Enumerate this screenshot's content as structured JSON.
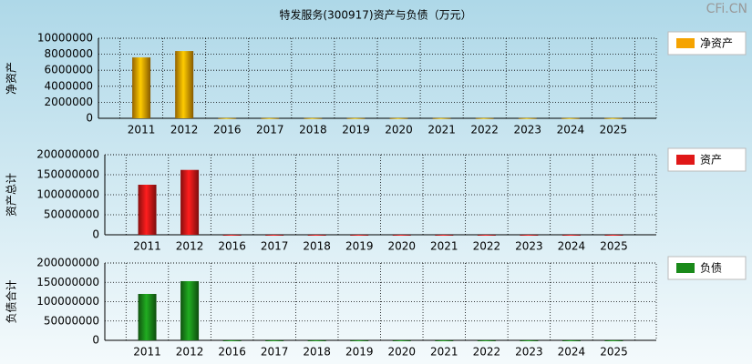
{
  "title": "特发服务(300917)资产与负债（万元）",
  "watermark": "CFi.CN",
  "chart_data": [
    {
      "type": "bar",
      "ylabel": "净资产",
      "categories": [
        "2011",
        "2012",
        "2016",
        "2017",
        "2018",
        "2019",
        "2020",
        "2021",
        "2022",
        "2023",
        "2024",
        "2025"
      ],
      "series": [
        {
          "name": "净资产",
          "color": "#f5a300",
          "values": [
            7600000,
            8400000,
            30000,
            30000,
            30000,
            30000,
            30000,
            30000,
            30000,
            30000,
            30000,
            30000
          ]
        }
      ],
      "ylim": [
        0,
        10000000
      ],
      "yticks": [
        0,
        2000000,
        4000000,
        6000000,
        8000000,
        10000000
      ],
      "grid": true,
      "legend": "right"
    },
    {
      "type": "bar",
      "ylabel": "资产总计",
      "categories": [
        "2011",
        "2012",
        "2016",
        "2017",
        "2018",
        "2019",
        "2020",
        "2021",
        "2022",
        "2023",
        "2024",
        "2025"
      ],
      "series": [
        {
          "name": "资产",
          "color": "#e01818",
          "values": [
            125000000,
            162000000,
            60000,
            60000,
            60000,
            60000,
            60000,
            60000,
            60000,
            60000,
            60000,
            60000
          ]
        }
      ],
      "ylim": [
        0,
        200000000
      ],
      "yticks": [
        0,
        50000000,
        100000000,
        150000000,
        200000000
      ],
      "grid": true,
      "legend": "right"
    },
    {
      "type": "bar",
      "ylabel": "负债合计",
      "categories": [
        "2011",
        "2012",
        "2016",
        "2017",
        "2018",
        "2019",
        "2020",
        "2021",
        "2022",
        "2023",
        "2024",
        "2025"
      ],
      "series": [
        {
          "name": "负债",
          "color": "#1a8a1a",
          "values": [
            120000000,
            153000000,
            30000,
            30000,
            30000,
            30000,
            30000,
            30000,
            30000,
            30000,
            30000,
            30000
          ]
        }
      ],
      "ylim": [
        0,
        200000000
      ],
      "yticks": [
        0,
        50000000,
        100000000,
        150000000,
        200000000
      ],
      "grid": true,
      "legend": "right"
    }
  ]
}
